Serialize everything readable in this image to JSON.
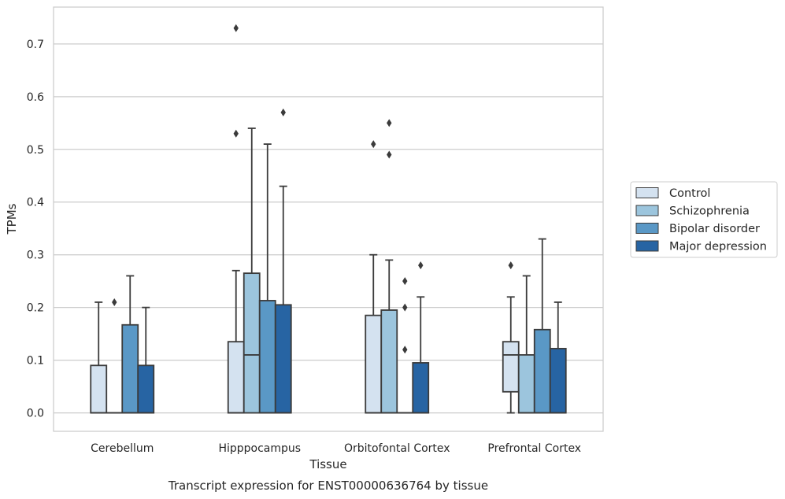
{
  "chart_data": {
    "type": "box",
    "caption": "Transcript expression for ENST00000636764 by tissue",
    "xlabel": "Tissue",
    "ylabel": "TPMs",
    "ylim": [
      -0.035,
      0.77
    ],
    "yticks": [
      0.0,
      0.1,
      0.2,
      0.3,
      0.4,
      0.5,
      0.6,
      0.7
    ],
    "ytick_labels": [
      "0.0",
      "0.1",
      "0.2",
      "0.3",
      "0.4",
      "0.5",
      "0.6",
      "0.7"
    ],
    "grid": "horizontal",
    "legend_position": "right",
    "categories": [
      "Cerebellum",
      "Hipppocampus",
      "Orbitofontal Cortex",
      "Prefrontal Cortex"
    ],
    "series": [
      {
        "name": "Control",
        "color": "#d4e2f0",
        "boxes": [
          {
            "q1": 0.0,
            "median": 0.0,
            "q3": 0.09,
            "whisker_low": 0.0,
            "whisker_high": 0.21,
            "outliers": []
          },
          {
            "q1": 0.0,
            "median": 0.0,
            "q3": 0.135,
            "whisker_low": 0.0,
            "whisker_high": 0.27,
            "outliers": [
              0.53,
              0.73
            ]
          },
          {
            "q1": 0.0,
            "median": 0.0,
            "q3": 0.185,
            "whisker_low": 0.0,
            "whisker_high": 0.3,
            "outliers": [
              0.51
            ]
          },
          {
            "q1": 0.04,
            "median": 0.11,
            "q3": 0.135,
            "whisker_low": 0.0,
            "whisker_high": 0.22,
            "outliers": [
              0.28
            ]
          }
        ]
      },
      {
        "name": "Schizophrenia",
        "color": "#9cc5dd",
        "boxes": [
          {
            "q1": 0.0,
            "median": 0.0,
            "q3": 0.0,
            "whisker_low": 0.0,
            "whisker_high": 0.0,
            "outliers": [
              0.21
            ]
          },
          {
            "q1": 0.0,
            "median": 0.11,
            "q3": 0.265,
            "whisker_low": 0.0,
            "whisker_high": 0.54,
            "outliers": []
          },
          {
            "q1": 0.0,
            "median": 0.0,
            "q3": 0.195,
            "whisker_low": 0.0,
            "whisker_high": 0.29,
            "outliers": [
              0.49,
              0.55
            ]
          },
          {
            "q1": 0.0,
            "median": 0.0,
            "q3": 0.11,
            "whisker_low": 0.0,
            "whisker_high": 0.26,
            "outliers": []
          }
        ]
      },
      {
        "name": "Bipolar disorder",
        "color": "#5a98c6",
        "boxes": [
          {
            "q1": 0.0,
            "median": 0.0,
            "q3": 0.167,
            "whisker_low": 0.0,
            "whisker_high": 0.26,
            "outliers": []
          },
          {
            "q1": 0.0,
            "median": 0.0,
            "q3": 0.213,
            "whisker_low": 0.0,
            "whisker_high": 0.51,
            "outliers": []
          },
          {
            "q1": 0.0,
            "median": 0.0,
            "q3": 0.0,
            "whisker_low": 0.0,
            "whisker_high": 0.0,
            "outliers": [
              0.12,
              0.2,
              0.25
            ]
          },
          {
            "q1": 0.0,
            "median": 0.0,
            "q3": 0.158,
            "whisker_low": 0.0,
            "whisker_high": 0.33,
            "outliers": []
          }
        ]
      },
      {
        "name": "Major depression",
        "color": "#2764a3",
        "boxes": [
          {
            "q1": 0.0,
            "median": 0.0,
            "q3": 0.09,
            "whisker_low": 0.0,
            "whisker_high": 0.2,
            "outliers": []
          },
          {
            "q1": 0.0,
            "median": 0.0,
            "q3": 0.205,
            "whisker_low": 0.0,
            "whisker_high": 0.43,
            "outliers": [
              0.57
            ]
          },
          {
            "q1": 0.0,
            "median": 0.0,
            "q3": 0.095,
            "whisker_low": 0.0,
            "whisker_high": 0.22,
            "outliers": [
              0.28
            ]
          },
          {
            "q1": 0.0,
            "median": 0.0,
            "q3": 0.122,
            "whisker_low": 0.0,
            "whisker_high": 0.21,
            "outliers": []
          }
        ]
      }
    ]
  }
}
